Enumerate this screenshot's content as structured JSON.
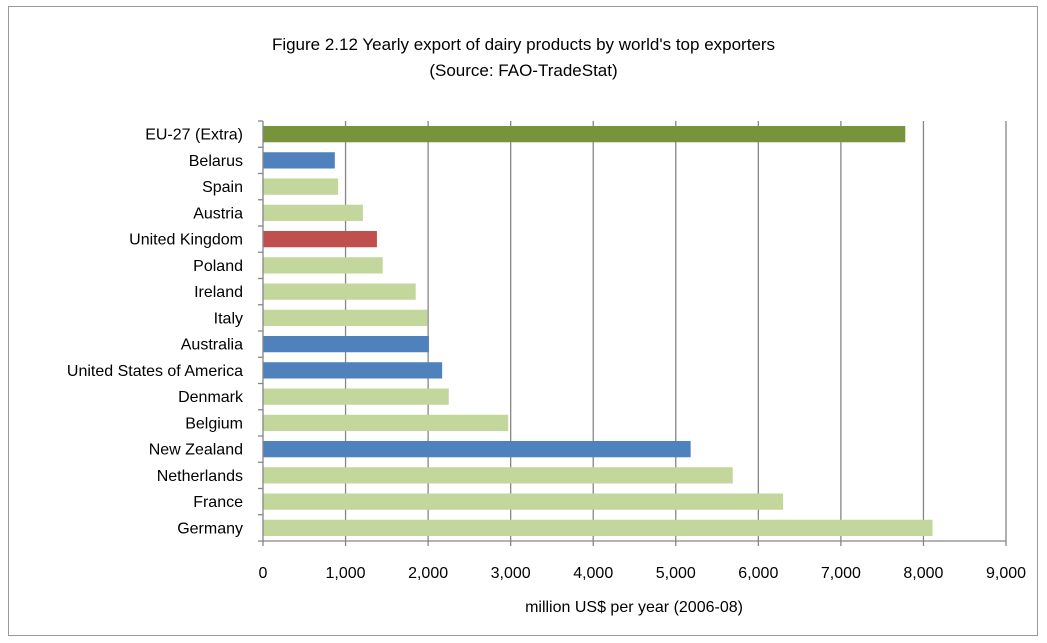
{
  "chart_data": {
    "type": "bar",
    "orientation": "horizontal",
    "title": "Figure 2.12 Yearly export of dairy products by world's top exporters",
    "subtitle": "(Source: FAO-TradeStat)",
    "xlabel": "million US$ per year (2006-08)",
    "ylabel": "",
    "xlim": [
      0,
      9000
    ],
    "x_ticks": [
      0,
      1000,
      2000,
      3000,
      4000,
      5000,
      6000,
      7000,
      8000,
      9000
    ],
    "x_tick_labels": [
      "0",
      "1,000",
      "2,000",
      "3,000",
      "4,000",
      "5,000",
      "6,000",
      "7,000",
      "8,000",
      "9,000"
    ],
    "grid": "vertical",
    "legend": "none",
    "categories": [
      "EU-27 (Extra)",
      "Belarus",
      "Spain",
      "Austria",
      "United Kingdom",
      "Poland",
      "Ireland",
      "Italy",
      "Australia",
      "United States of America",
      "Denmark",
      "Belgium",
      "New Zealand",
      "Netherlands",
      "France",
      "Germany"
    ],
    "values": [
      7780,
      870,
      910,
      1210,
      1380,
      1450,
      1850,
      1990,
      2010,
      2170,
      2250,
      2970,
      5180,
      5690,
      6300,
      8110
    ],
    "bar_colors": [
      "#77933c",
      "#4f81bd",
      "#c3d69b",
      "#c3d69b",
      "#c0504d",
      "#c3d69b",
      "#c3d69b",
      "#c3d69b",
      "#4f81bd",
      "#4f81bd",
      "#c3d69b",
      "#c3d69b",
      "#4f81bd",
      "#c3d69b",
      "#c3d69b",
      "#c3d69b"
    ]
  }
}
